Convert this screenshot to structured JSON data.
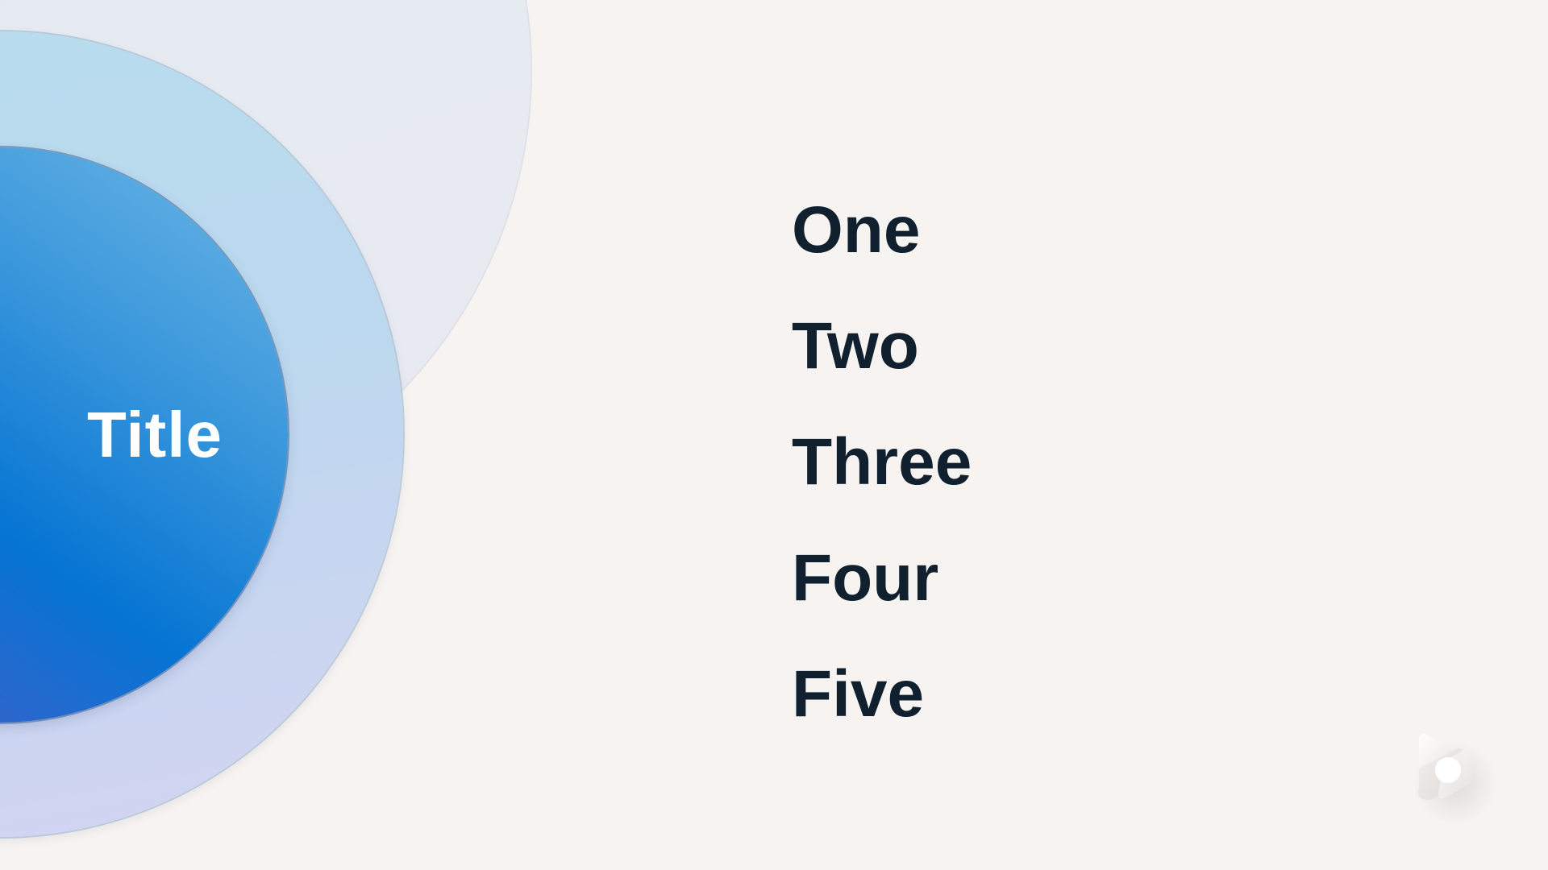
{
  "slide": {
    "circle_title": "Title",
    "items": [
      {
        "label": "One"
      },
      {
        "label": "Two"
      },
      {
        "label": "Three"
      },
      {
        "label": "Four"
      },
      {
        "label": "Five"
      }
    ],
    "logo_icon": "app-logo-icon"
  },
  "colors": {
    "background": "#f6f3f0",
    "text_dark": "#10202e",
    "accent_blue": "#0574d3",
    "accent_purple": "#7b64c8"
  }
}
